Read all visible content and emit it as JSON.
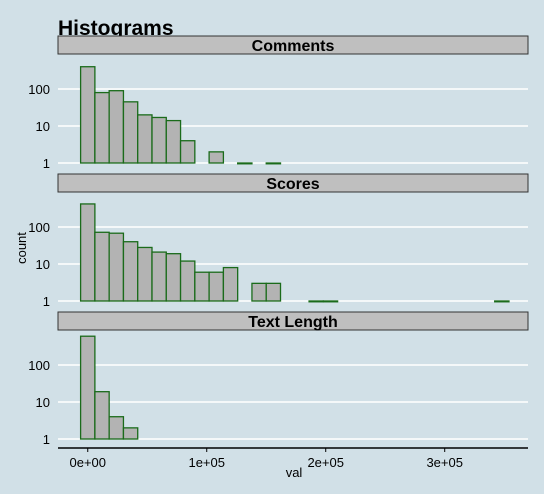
{
  "chart_data": {
    "type": "bar",
    "title": "Histograms",
    "xlabel": "val",
    "ylabel": "count",
    "y_scale": "log10",
    "ylim": [
      1,
      700
    ],
    "xlim": [
      -25000,
      370000
    ],
    "x_ticks": [
      {
        "value": 0,
        "label": "0e+00"
      },
      {
        "value": 100000,
        "label": "1e+05"
      },
      {
        "value": 200000,
        "label": "2e+05"
      },
      {
        "value": 300000,
        "label": "3e+05"
      }
    ],
    "y_ticks": [
      {
        "value": 1,
        "label": "1"
      },
      {
        "value": 10,
        "label": "10"
      },
      {
        "value": 100,
        "label": "100"
      }
    ],
    "bin_width": 12000,
    "grid": true,
    "colors": {
      "background": "#d1e0e7",
      "bar_fill": "#b3b3b3",
      "bar_stroke": "#1a6b1a",
      "strip_fill": "#bfbfbf",
      "grid": "#ffffff"
    },
    "panels": [
      {
        "name": "Comments",
        "bins": [
          {
            "x": -6000,
            "count": 400
          },
          {
            "x": 6000,
            "count": 80
          },
          {
            "x": 18000,
            "count": 90
          },
          {
            "x": 30000,
            "count": 45
          },
          {
            "x": 42000,
            "count": 20
          },
          {
            "x": 54000,
            "count": 17
          },
          {
            "x": 66000,
            "count": 14
          },
          {
            "x": 78000,
            "count": 4
          },
          {
            "x": 102000,
            "count": 2
          },
          {
            "x": 126000,
            "count": 1
          },
          {
            "x": 150000,
            "count": 1
          }
        ]
      },
      {
        "name": "Scores",
        "bins": [
          {
            "x": -6000,
            "count": 420
          },
          {
            "x": 6000,
            "count": 72
          },
          {
            "x": 18000,
            "count": 68
          },
          {
            "x": 30000,
            "count": 40
          },
          {
            "x": 42000,
            "count": 28
          },
          {
            "x": 54000,
            "count": 21
          },
          {
            "x": 66000,
            "count": 19
          },
          {
            "x": 78000,
            "count": 12
          },
          {
            "x": 90000,
            "count": 6
          },
          {
            "x": 102000,
            "count": 6
          },
          {
            "x": 114000,
            "count": 8
          },
          {
            "x": 138000,
            "count": 3
          },
          {
            "x": 150000,
            "count": 3
          },
          {
            "x": 186000,
            "count": 1
          },
          {
            "x": 198000,
            "count": 1
          },
          {
            "x": 342000,
            "count": 1
          }
        ]
      },
      {
        "name": "Text Length",
        "bins": [
          {
            "x": -6000,
            "count": 600
          },
          {
            "x": 6000,
            "count": 19
          },
          {
            "x": 18000,
            "count": 4
          },
          {
            "x": 30000,
            "count": 2
          }
        ]
      }
    ]
  }
}
